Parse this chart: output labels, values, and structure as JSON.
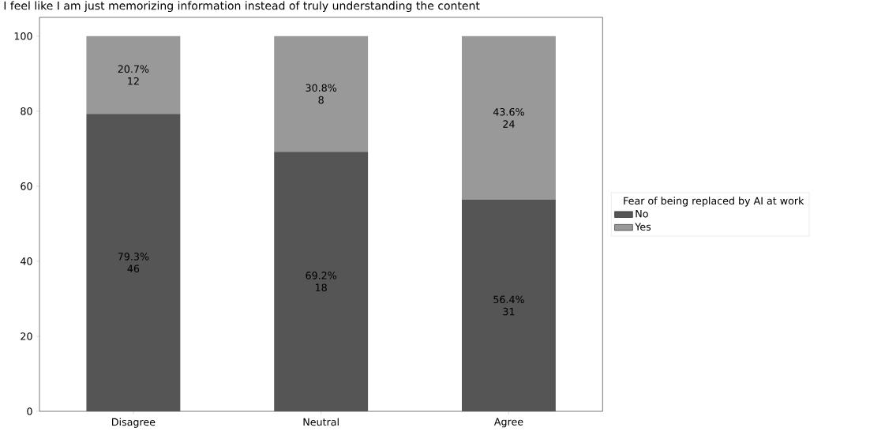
{
  "chart_data": {
    "type": "bar",
    "stacked": true,
    "title": "I feel like I am just memorizing information instead of truly understanding the content",
    "categories": [
      "Disagree",
      "Neutral",
      "Agree"
    ],
    "series": [
      {
        "name": "No",
        "color": "#555555",
        "values": [
          79.3,
          69.2,
          56.4
        ],
        "value_labels": [
          [
            "79.3%",
            "46"
          ],
          [
            "69.2%",
            "18"
          ],
          [
            "56.4%",
            "31"
          ]
        ]
      },
      {
        "name": "Yes",
        "color": "#999999",
        "values": [
          20.7,
          30.8,
          43.6
        ],
        "value_labels": [
          [
            "20.7%",
            "12"
          ],
          [
            "30.8%",
            "8"
          ],
          [
            "43.6%",
            "24"
          ]
        ]
      }
    ],
    "legend_title": "Fear of being replaced by AI at work",
    "legend": "right",
    "ylim": [
      0,
      105
    ],
    "yticks": [
      0,
      20,
      40,
      60,
      80,
      100
    ],
    "grid": false
  }
}
